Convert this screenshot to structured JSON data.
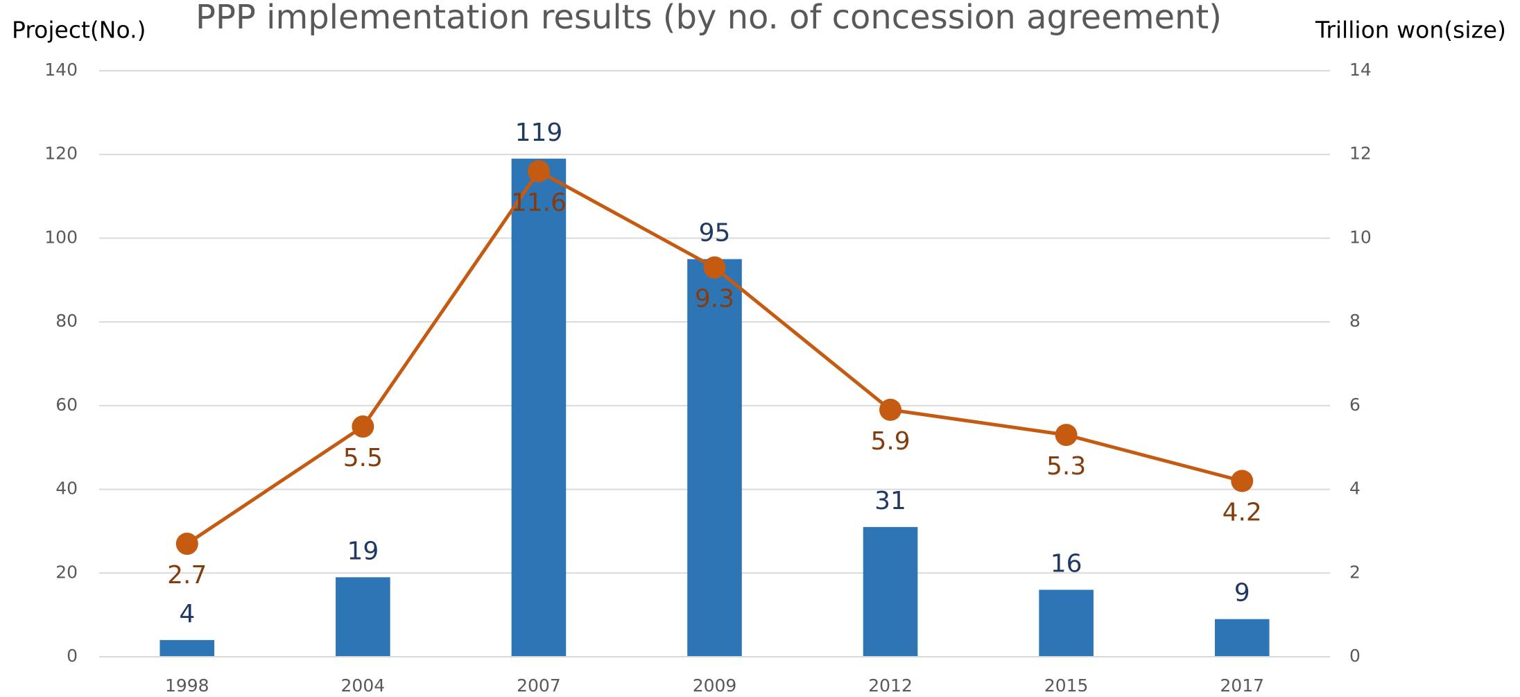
{
  "chart_data": {
    "type": "combo",
    "title": "PPP implementation results (by no. of concession agreement)",
    "y_label": "Project(No.)",
    "y2_label": "Trillion won(size)",
    "categories": [
      "1998",
      "2004",
      "2007",
      "2009",
      "2012",
      "2015",
      "2017"
    ],
    "series": [
      {
        "type": "bar",
        "color": "#2e75b6",
        "label_color": "#1f3864",
        "values": [
          4,
          19,
          119,
          95,
          31,
          16,
          9
        ]
      },
      {
        "type": "line",
        "axis": "y2",
        "color": "#c55a11",
        "label_color": "#843c0c",
        "values": [
          2.7,
          5.5,
          11.6,
          9.3,
          5.9,
          5.3,
          4.2
        ]
      }
    ],
    "ylim": [
      0,
      140
    ],
    "yticks": [
      0,
      20,
      40,
      60,
      80,
      100,
      120,
      140
    ],
    "y2lim": [
      0,
      14
    ],
    "y2ticks": [
      0,
      2,
      4,
      6,
      8,
      10,
      12,
      14
    ],
    "grid": true
  }
}
